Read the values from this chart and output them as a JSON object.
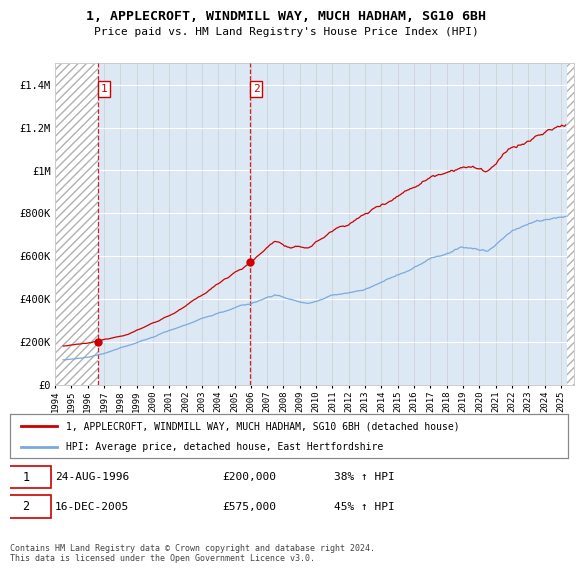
{
  "title": "1, APPLECROFT, WINDMILL WAY, MUCH HADHAM, SG10 6BH",
  "subtitle": "Price paid vs. HM Land Registry's House Price Index (HPI)",
  "sale1_date": 1996.65,
  "sale1_price": 200000,
  "sale2_date": 2005.96,
  "sale2_price": 575000,
  "red_line_color": "#cc0000",
  "blue_line_color": "#7aaadd",
  "background_color": "#dde8f5",
  "hatch_background": "#ffffff",
  "ylim_min": 0,
  "ylim_max": 1500000,
  "xlim_min": 1994.0,
  "xlim_max": 2025.8,
  "legend_red": "1, APPLECROFT, WINDMILL WAY, MUCH HADHAM, SG10 6BH (detached house)",
  "legend_blue": "HPI: Average price, detached house, East Hertfordshire",
  "table_row1": [
    "1",
    "24-AUG-1996",
    "£200,000",
    "38% ↑ HPI"
  ],
  "table_row2": [
    "2",
    "16-DEC-2005",
    "£575,000",
    "45% ↑ HPI"
  ],
  "footnote": "Contains HM Land Registry data © Crown copyright and database right 2024.\nThis data is licensed under the Open Government Licence v3.0.",
  "yticks": [
    0,
    200000,
    400000,
    600000,
    800000,
    1000000,
    1200000,
    1400000
  ],
  "ytick_labels": [
    "£0",
    "£200K",
    "£400K",
    "£600K",
    "£800K",
    "£1M",
    "£1.2M",
    "£1.4M"
  ]
}
